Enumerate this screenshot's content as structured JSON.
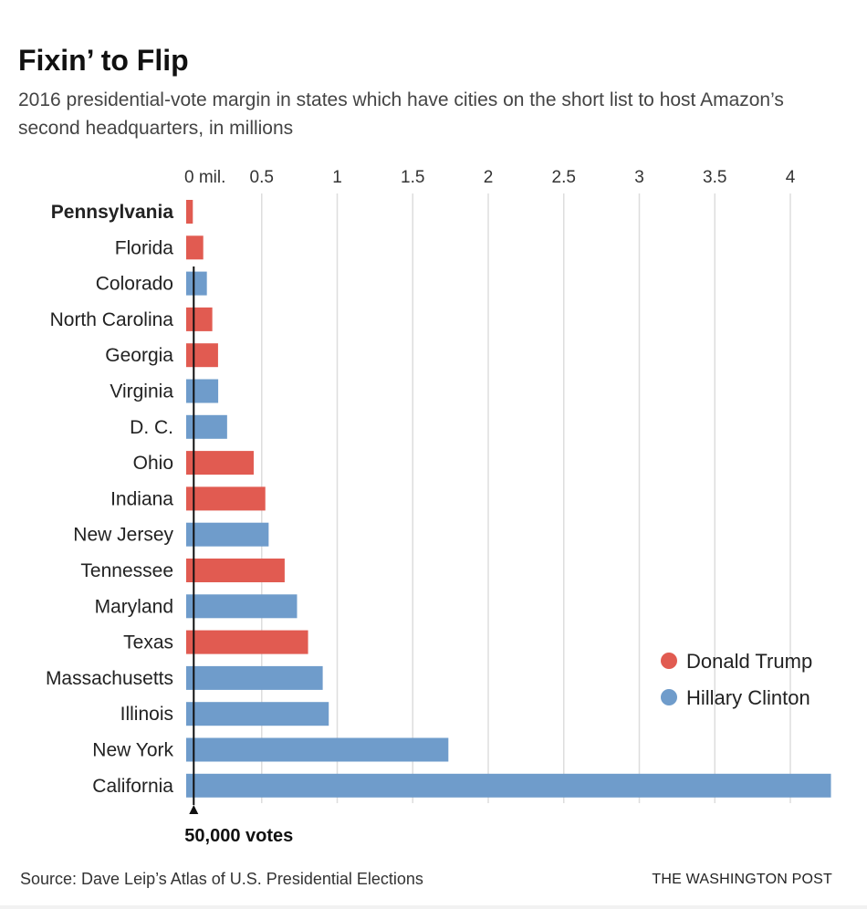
{
  "title": "Fixin’ to Flip",
  "subtitle": "2016 presidential-vote margin in states which have cities on the short list to host Amazon’s second headquarters, in millions",
  "source": "Source: Dave Leip’s Atlas of U.S. Presidential Elections",
  "credit": "THE WASHINGTON POST",
  "colors": {
    "trump": "#e15b51",
    "clinton": "#6f9ccb",
    "grid": "#dddddd",
    "threshold": "#111111"
  },
  "chart_data": {
    "type": "bar",
    "orientation": "horizontal",
    "unit": "millions",
    "x_ticks": [
      {
        "value": 0,
        "label": "0 mil."
      },
      {
        "value": 0.5,
        "label": "0.5"
      },
      {
        "value": 1,
        "label": "1"
      },
      {
        "value": 1.5,
        "label": "1.5"
      },
      {
        "value": 2,
        "label": "2"
      },
      {
        "value": 2.5,
        "label": "2.5"
      },
      {
        "value": 3,
        "label": "3"
      },
      {
        "value": 3.5,
        "label": "3.5"
      },
      {
        "value": 4,
        "label": "4"
      }
    ],
    "xlim": [
      0,
      4.25
    ],
    "categories": [
      "Pennsylvania",
      "Florida",
      "Colorado",
      "North Carolina",
      "Georgia",
      "Virginia",
      "D. C.",
      "Ohio",
      "Indiana",
      "New Jersey",
      "Tennessee",
      "Maryland",
      "Texas",
      "Massachusetts",
      "Illinois",
      "New York",
      "California"
    ],
    "values": [
      0.044,
      0.113,
      0.137,
      0.173,
      0.211,
      0.212,
      0.271,
      0.447,
      0.524,
      0.546,
      0.652,
      0.734,
      0.807,
      0.904,
      0.944,
      1.736,
      4.269
    ],
    "winner": [
      "trump",
      "trump",
      "clinton",
      "trump",
      "trump",
      "clinton",
      "clinton",
      "trump",
      "trump",
      "clinton",
      "trump",
      "clinton",
      "trump",
      "clinton",
      "clinton",
      "clinton",
      "clinton"
    ],
    "highlight": "Pennsylvania",
    "legend": {
      "position": "bottom-right",
      "entries": [
        {
          "key": "trump",
          "label": "Donald Trump"
        },
        {
          "key": "clinton",
          "label": "Hillary Clinton"
        }
      ]
    },
    "threshold": {
      "value": 0.05,
      "label": "50,000 votes"
    },
    "grid": true
  }
}
